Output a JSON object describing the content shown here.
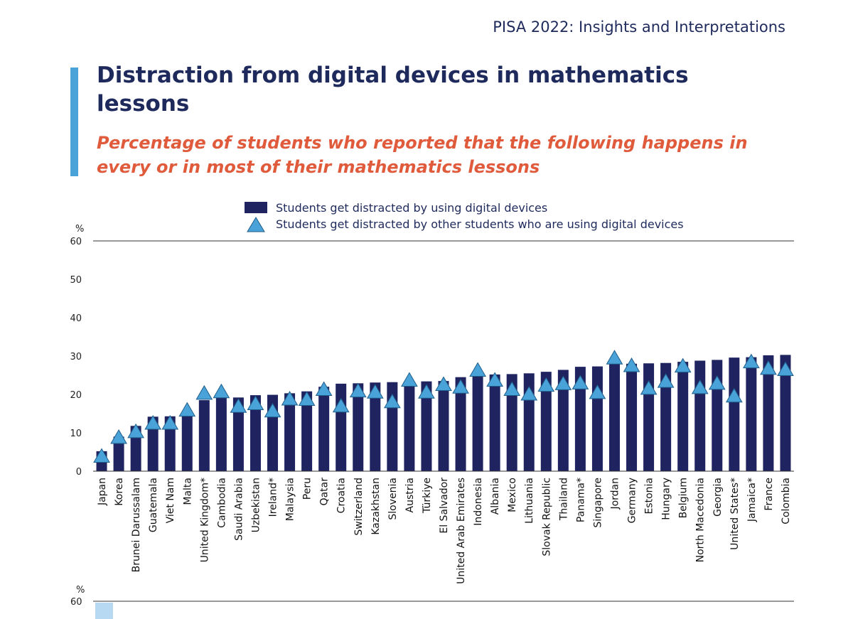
{
  "header": {
    "publication": "PISA 2022: Insights and Interpretations"
  },
  "title": "Distraction from digital devices in mathematics lessons",
  "subtitle": "Percentage of students who reported that the following happens in every or in most of their mathematics lessons",
  "colors": {
    "bar": "#1f2460",
    "marker": "#4aa3d8",
    "accent": "#4aa3d8",
    "title": "#1f2a5c",
    "subtitle": "#e05a3c"
  },
  "chart_data": {
    "type": "bar",
    "ylabel": "%",
    "ylim": [
      0,
      60
    ],
    "yticks": [
      0,
      10,
      20,
      30,
      40,
      50,
      60
    ],
    "grid": false,
    "legend_position": "top-center",
    "categories": [
      "Japan",
      "Korea",
      "Brunei Darussalam",
      "Guatemala",
      "Viet Nam",
      "Malta",
      "United Kingdom*",
      "Cambodia",
      "Saudi Arabia",
      "Uzbekistan",
      "Ireland*",
      "Malaysia",
      "Peru",
      "Qatar",
      "Croatia",
      "Switzerland",
      "Kazakhstan",
      "Slovenia",
      "Austria",
      "Türkiye",
      "El Salvador",
      "United Arab Emirates",
      "Indonesia",
      "Albania",
      "Mexico",
      "Lithuania",
      "Slovak Republic",
      "Thailand",
      "Panama*",
      "Singapore",
      "Jordan",
      "Germany",
      "Estonia",
      "Hungary",
      "Belgium",
      "North Macedonia",
      "Georgia",
      "United States*",
      "Jamaica*",
      "France",
      "Colombia"
    ],
    "series": [
      {
        "name": "Students get distracted by using digital devices",
        "marker": "bar",
        "values": [
          5.2,
          9.0,
          11.8,
          14.2,
          14.3,
          15.2,
          18.5,
          19.5,
          19.2,
          19.8,
          19.9,
          20.3,
          20.8,
          22.0,
          22.8,
          22.9,
          23.1,
          23.2,
          23.3,
          23.4,
          23.5,
          24.5,
          25.0,
          25.2,
          25.3,
          25.5,
          25.9,
          26.4,
          27.2,
          27.3,
          28.0,
          28.0,
          28.1,
          28.2,
          28.5,
          28.8,
          29.0,
          29.6,
          29.7,
          30.2,
          30.3
        ]
      },
      {
        "name": "Students get distracted by other students who are using digital devices",
        "marker": "triangle",
        "values": [
          3.8,
          8.7,
          10.2,
          12.4,
          12.4,
          15.8,
          20.2,
          20.6,
          16.8,
          17.5,
          15.6,
          18.7,
          18.6,
          21.2,
          16.9,
          20.8,
          20.5,
          18.0,
          23.6,
          20.5,
          22.5,
          21.8,
          26.2,
          23.6,
          21.2,
          20.0,
          22.3,
          22.7,
          22.9,
          20.4,
          29.4,
          27.4,
          21.5,
          23.3,
          27.3,
          21.7,
          22.8,
          19.5,
          28.4,
          26.7,
          26.4
        ]
      }
    ]
  },
  "next_panel": {
    "ylabel": "%",
    "ytick_top": "60"
  }
}
